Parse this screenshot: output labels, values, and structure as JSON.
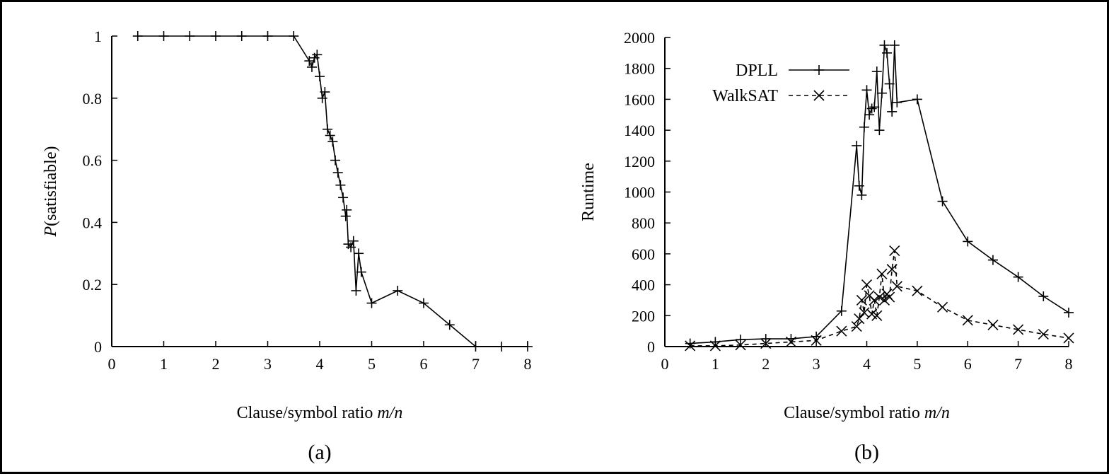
{
  "figure": {
    "panel_a_label": "(a)",
    "panel_b_label": "(b)"
  },
  "chart_data": [
    {
      "type": "line",
      "panel": "(a)",
      "xlabel": {
        "prefix": "Clause/symbol ratio ",
        "italic": "m/n"
      },
      "ylabel": {
        "italic": "P",
        "suffix": "(satisfiable)"
      },
      "xlim": [
        0,
        8
      ],
      "ylim": [
        0,
        1
      ],
      "xticks": [
        "0",
        "1",
        "2",
        "3",
        "4",
        "5",
        "6",
        "7",
        "8"
      ],
      "yticks": [
        "0",
        "0.2",
        "0.4",
        "0.6",
        "0.8",
        "1"
      ],
      "grid": false,
      "reference_line": {
        "y": 0,
        "style": "dotted"
      },
      "series": [
        {
          "marker": "+",
          "line": "solid",
          "x": [
            0.5,
            1.0,
            1.5,
            2.0,
            2.5,
            3.0,
            3.5,
            3.8,
            3.85,
            3.9,
            3.95,
            4.0,
            4.05,
            4.1,
            4.15,
            4.2,
            4.25,
            4.3,
            4.35,
            4.4,
            4.45,
            4.5,
            4.52,
            4.55,
            4.6,
            4.65,
            4.7,
            4.75,
            4.8,
            5.0,
            5.5,
            6.0,
            6.5,
            7.0,
            7.5,
            8.0
          ],
          "y": [
            1.0,
            1.0,
            1.0,
            1.0,
            1.0,
            1.0,
            1.0,
            0.92,
            0.9,
            0.93,
            0.94,
            0.87,
            0.8,
            0.82,
            0.7,
            0.68,
            0.66,
            0.6,
            0.56,
            0.52,
            0.48,
            0.42,
            0.44,
            0.33,
            0.32,
            0.34,
            0.18,
            0.3,
            0.24,
            0.14,
            0.18,
            0.14,
            0.07,
            0.0,
            0.0,
            0.0
          ]
        }
      ]
    },
    {
      "type": "line",
      "panel": "(b)",
      "xlabel": {
        "prefix": "Clause/symbol ratio ",
        "italic": "m/n"
      },
      "ylabel": "Runtime",
      "xlim": [
        0,
        8
      ],
      "ylim": [
        0,
        2000
      ],
      "xticks": [
        "0",
        "1",
        "2",
        "3",
        "4",
        "5",
        "6",
        "7",
        "8"
      ],
      "yticks": [
        "0",
        "200",
        "400",
        "600",
        "800",
        "1000",
        "1200",
        "1400",
        "1600",
        "1800",
        "2000"
      ],
      "grid": false,
      "legend_position": "top-left",
      "series": [
        {
          "name": "DPLL",
          "marker": "+",
          "line": "solid",
          "x": [
            0.5,
            1.0,
            1.5,
            2.0,
            2.5,
            3.0,
            3.5,
            3.8,
            3.85,
            3.9,
            3.95,
            4.0,
            4.05,
            4.1,
            4.15,
            4.2,
            4.25,
            4.3,
            4.35,
            4.4,
            4.45,
            4.5,
            4.55,
            4.6,
            5.0,
            5.5,
            6.0,
            6.5,
            7.0,
            7.5,
            8.0
          ],
          "y": [
            20,
            30,
            45,
            50,
            50,
            65,
            230,
            1300,
            1040,
            980,
            1420,
            1660,
            1500,
            1540,
            1550,
            1780,
            1400,
            1640,
            1950,
            1900,
            1700,
            1520,
            1950,
            1580,
            1600,
            940,
            680,
            560,
            450,
            325,
            220
          ]
        },
        {
          "name": "WalkSAT",
          "marker": "x",
          "line": "dashed",
          "x": [
            0.5,
            1.0,
            1.5,
            2.0,
            2.5,
            3.0,
            3.5,
            3.8,
            3.85,
            3.9,
            3.95,
            4.0,
            4.05,
            4.1,
            4.15,
            4.2,
            4.25,
            4.3,
            4.35,
            4.4,
            4.45,
            4.5,
            4.55,
            4.6,
            5.0,
            5.5,
            6.0,
            6.5,
            7.0,
            7.5,
            8.0
          ],
          "y": [
            5,
            5,
            10,
            20,
            30,
            40,
            100,
            130,
            180,
            300,
            220,
            400,
            330,
            210,
            300,
            200,
            320,
            470,
            300,
            340,
            320,
            500,
            620,
            390,
            360,
            255,
            170,
            140,
            110,
            80,
            55
          ]
        }
      ]
    }
  ]
}
